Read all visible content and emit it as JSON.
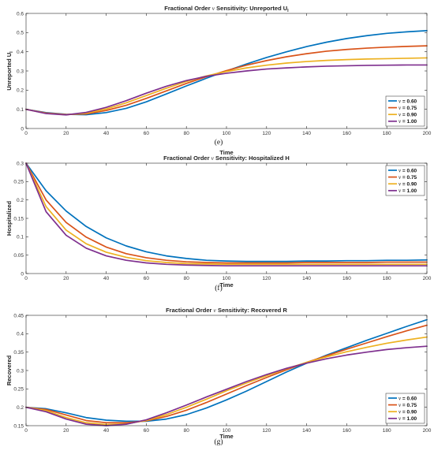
{
  "colors": {
    "v060": "#0072BD",
    "v075": "#D95319",
    "v090": "#EDB120",
    "v100": "#7E2F8E",
    "axis": "#262626"
  },
  "chart_data": [
    {
      "type": "line",
      "caption": "(e)",
      "title_prefix": "Fractional Order ",
      "title_nu": "ν",
      "title_suffix": " Sensitivity: Unreported U",
      "title_sub": "I",
      "xlabel": "Time",
      "ylabel": "Unreported U",
      "ylabel_sub": "I",
      "xlim": [
        0,
        200
      ],
      "ylim": [
        0,
        0.6
      ],
      "xticks": [
        "0",
        "20",
        "40",
        "60",
        "80",
        "100",
        "120",
        "140",
        "160",
        "180",
        "200"
      ],
      "yticks": [
        "0",
        "0.1",
        "0.2",
        "0.3",
        "0.4",
        "0.5",
        "0.6"
      ],
      "legend_position": "bottom-right",
      "x": [
        0,
        10,
        20,
        30,
        40,
        50,
        60,
        70,
        80,
        90,
        100,
        110,
        120,
        130,
        140,
        150,
        160,
        170,
        180,
        190,
        200
      ],
      "series": [
        {
          "name": "ν = 0.60",
          "color_key": "v060",
          "values": [
            0.1,
            0.083,
            0.074,
            0.072,
            0.083,
            0.105,
            0.139,
            0.18,
            0.222,
            0.262,
            0.3,
            0.336,
            0.37,
            0.4,
            0.427,
            0.45,
            0.469,
            0.484,
            0.496,
            0.504,
            0.51
          ]
        },
        {
          "name": "ν = 0.75",
          "color_key": "v075",
          "values": [
            0.1,
            0.081,
            0.073,
            0.076,
            0.094,
            0.121,
            0.157,
            0.196,
            0.235,
            0.27,
            0.302,
            0.33,
            0.354,
            0.374,
            0.39,
            0.403,
            0.412,
            0.419,
            0.424,
            0.428,
            0.431
          ]
        },
        {
          "name": "ν = 0.90",
          "color_key": "v090",
          "values": [
            0.1,
            0.079,
            0.072,
            0.08,
            0.102,
            0.134,
            0.172,
            0.21,
            0.245,
            0.274,
            0.297,
            0.316,
            0.33,
            0.341,
            0.349,
            0.355,
            0.359,
            0.362,
            0.364,
            0.366,
            0.368
          ]
        },
        {
          "name": "ν = 1.00",
          "color_key": "v100",
          "values": [
            0.1,
            0.078,
            0.071,
            0.084,
            0.11,
            0.145,
            0.184,
            0.22,
            0.25,
            0.272,
            0.288,
            0.3,
            0.31,
            0.316,
            0.321,
            0.325,
            0.327,
            0.329,
            0.33,
            0.331,
            0.331
          ]
        }
      ]
    },
    {
      "type": "line",
      "caption": "(f)",
      "title_prefix": "Fractional Order ",
      "title_nu": "ν",
      "title_suffix": " Sensitivity: Hospitalized H",
      "title_sub": "",
      "xlabel": "Time",
      "ylabel": "Hospitalized",
      "ylabel_sub": "",
      "xlim": [
        0,
        200
      ],
      "ylim": [
        0,
        0.3
      ],
      "xticks": [
        "0",
        "20",
        "40",
        "60",
        "80",
        "100",
        "120",
        "140",
        "160",
        "180",
        "200"
      ],
      "yticks": [
        "0",
        "0.05",
        "0.1",
        "0.15",
        "0.2",
        "0.25",
        "0.3"
      ],
      "legend_position": "top-right",
      "x": [
        0,
        10,
        20,
        30,
        40,
        50,
        60,
        70,
        80,
        90,
        100,
        110,
        120,
        130,
        140,
        150,
        160,
        170,
        180,
        190,
        200
      ],
      "series": [
        {
          "name": "ν = 0.60",
          "color_key": "v060",
          "values": [
            0.3,
            0.225,
            0.17,
            0.128,
            0.097,
            0.075,
            0.059,
            0.048,
            0.041,
            0.036,
            0.034,
            0.033,
            0.033,
            0.033,
            0.034,
            0.034,
            0.035,
            0.035,
            0.036,
            0.036,
            0.037
          ]
        },
        {
          "name": "ν = 0.75",
          "color_key": "v075",
          "values": [
            0.3,
            0.2,
            0.139,
            0.099,
            0.072,
            0.054,
            0.043,
            0.036,
            0.032,
            0.03,
            0.029,
            0.029,
            0.029,
            0.029,
            0.03,
            0.03,
            0.03,
            0.03,
            0.031,
            0.031,
            0.031
          ]
        },
        {
          "name": "ν = 0.90",
          "color_key": "v090",
          "values": [
            0.3,
            0.182,
            0.118,
            0.081,
            0.058,
            0.044,
            0.035,
            0.03,
            0.027,
            0.026,
            0.025,
            0.025,
            0.025,
            0.025,
            0.025,
            0.025,
            0.025,
            0.025,
            0.025,
            0.025,
            0.025
          ]
        },
        {
          "name": "ν = 1.00",
          "color_key": "v100",
          "values": [
            0.3,
            0.168,
            0.104,
            0.069,
            0.048,
            0.036,
            0.029,
            0.025,
            0.023,
            0.022,
            0.021,
            0.021,
            0.021,
            0.021,
            0.021,
            0.021,
            0.021,
            0.021,
            0.021,
            0.021,
            0.021
          ]
        }
      ]
    },
    {
      "type": "line",
      "caption": "(g)",
      "title_prefix": "Fractional Order ",
      "title_nu": "ν",
      "title_suffix": " Sensitivity: Recovered R",
      "title_sub": "",
      "xlabel": "Time",
      "ylabel": "Recovered",
      "ylabel_sub": "",
      "xlim": [
        0,
        200
      ],
      "ylim": [
        0.15,
        0.45
      ],
      "xticks": [
        "0",
        "20",
        "40",
        "60",
        "80",
        "100",
        "120",
        "140",
        "160",
        "180",
        "200"
      ],
      "yticks": [
        "0.15",
        "0.2",
        "0.25",
        "0.3",
        "0.35",
        "0.4",
        "0.45"
      ],
      "legend_position": "bottom-right",
      "x": [
        0,
        10,
        20,
        30,
        40,
        50,
        60,
        70,
        80,
        90,
        100,
        110,
        120,
        130,
        140,
        150,
        160,
        170,
        180,
        190,
        200
      ],
      "series": [
        {
          "name": "ν = 0.60",
          "color_key": "v060",
          "values": [
            0.2,
            0.196,
            0.185,
            0.172,
            0.165,
            0.162,
            0.162,
            0.168,
            0.18,
            0.198,
            0.22,
            0.244,
            0.27,
            0.296,
            0.32,
            0.342,
            0.362,
            0.382,
            0.401,
            0.42,
            0.438
          ]
        },
        {
          "name": "ν = 0.75",
          "color_key": "v075",
          "values": [
            0.2,
            0.194,
            0.179,
            0.164,
            0.158,
            0.158,
            0.163,
            0.175,
            0.192,
            0.213,
            0.236,
            0.259,
            0.281,
            0.302,
            0.322,
            0.34,
            0.358,
            0.375,
            0.392,
            0.408,
            0.423
          ]
        },
        {
          "name": "ν = 0.90",
          "color_key": "v090",
          "values": [
            0.2,
            0.191,
            0.172,
            0.158,
            0.153,
            0.155,
            0.164,
            0.18,
            0.2,
            0.222,
            0.245,
            0.266,
            0.286,
            0.305,
            0.322,
            0.337,
            0.351,
            0.363,
            0.374,
            0.383,
            0.391
          ]
        },
        {
          "name": "ν = 1.00",
          "color_key": "v100",
          "values": [
            0.2,
            0.188,
            0.168,
            0.154,
            0.15,
            0.154,
            0.166,
            0.185,
            0.206,
            0.228,
            0.249,
            0.27,
            0.289,
            0.306,
            0.32,
            0.332,
            0.342,
            0.35,
            0.357,
            0.362,
            0.366
          ]
        }
      ]
    }
  ]
}
